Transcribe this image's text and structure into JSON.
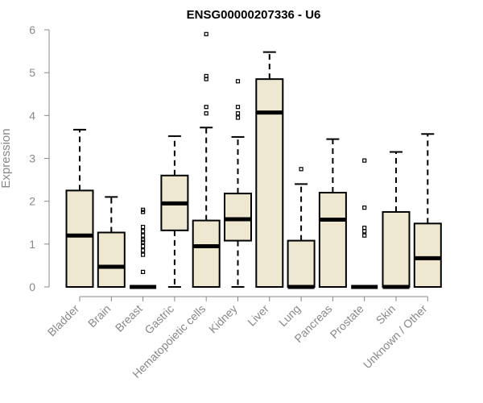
{
  "chart_data": {
    "type": "boxplot",
    "title": "ENSG00000207336 - U6",
    "xlabel": "",
    "ylabel": "Expression",
    "ylim": [
      0,
      6
    ],
    "yticks": [
      0,
      1,
      2,
      3,
      4,
      5,
      6
    ],
    "box_fill": "#EEE8D0",
    "box_stroke": "#000000",
    "categories": [
      "Bladder",
      "Brain",
      "Breast",
      "Gastric",
      "Hematopoietic cells",
      "Kidney",
      "Liver",
      "Lung",
      "Pancreas",
      "Prostate",
      "Skin",
      "Unknown / Other"
    ],
    "boxes": [
      {
        "q1": 0.0,
        "median": 1.2,
        "q3": 2.25,
        "whisker_low": 0.0,
        "whisker_high": 3.67,
        "outliers": []
      },
      {
        "q1": 0.0,
        "median": 0.47,
        "q3": 1.27,
        "whisker_low": 0.0,
        "whisker_high": 2.1,
        "outliers": []
      },
      {
        "q1": 0.0,
        "median": 0.0,
        "q3": 0.0,
        "whisker_low": 0.0,
        "whisker_high": 0.0,
        "outliers": [
          0.35,
          0.75,
          0.85,
          0.95,
          1.05,
          1.1,
          1.2,
          1.3,
          1.4,
          1.75,
          1.8
        ]
      },
      {
        "q1": 1.32,
        "median": 1.95,
        "q3": 2.6,
        "whisker_low": 0.0,
        "whisker_high": 3.52,
        "outliers": []
      },
      {
        "q1": 0.0,
        "median": 0.95,
        "q3": 1.55,
        "whisker_low": 0.0,
        "whisker_high": 3.72,
        "outliers": [
          4.05,
          4.2,
          4.85,
          4.92,
          5.9
        ]
      },
      {
        "q1": 1.08,
        "median": 1.58,
        "q3": 2.18,
        "whisker_low": 0.0,
        "whisker_high": 3.5,
        "outliers": [
          3.95,
          4.05,
          4.2,
          4.8
        ]
      },
      {
        "q1": 0.0,
        "median": 4.07,
        "q3": 4.85,
        "whisker_low": 0.0,
        "whisker_high": 5.48,
        "outliers": []
      },
      {
        "q1": 0.0,
        "median": 0.0,
        "q3": 1.08,
        "whisker_low": 0.0,
        "whisker_high": 2.4,
        "outliers": [
          2.75
        ]
      },
      {
        "q1": 0.0,
        "median": 1.57,
        "q3": 2.2,
        "whisker_low": 0.0,
        "whisker_high": 3.45,
        "outliers": []
      },
      {
        "q1": 0.0,
        "median": 0.0,
        "q3": 0.0,
        "whisker_low": 0.0,
        "whisker_high": 0.0,
        "outliers": [
          1.2,
          1.3,
          1.38,
          1.85,
          2.95
        ]
      },
      {
        "q1": 0.0,
        "median": 0.0,
        "q3": 1.75,
        "whisker_low": 0.0,
        "whisker_high": 3.15,
        "outliers": []
      },
      {
        "q1": 0.0,
        "median": 0.67,
        "q3": 1.48,
        "whisker_low": 0.0,
        "whisker_high": 3.57,
        "outliers": []
      }
    ]
  }
}
